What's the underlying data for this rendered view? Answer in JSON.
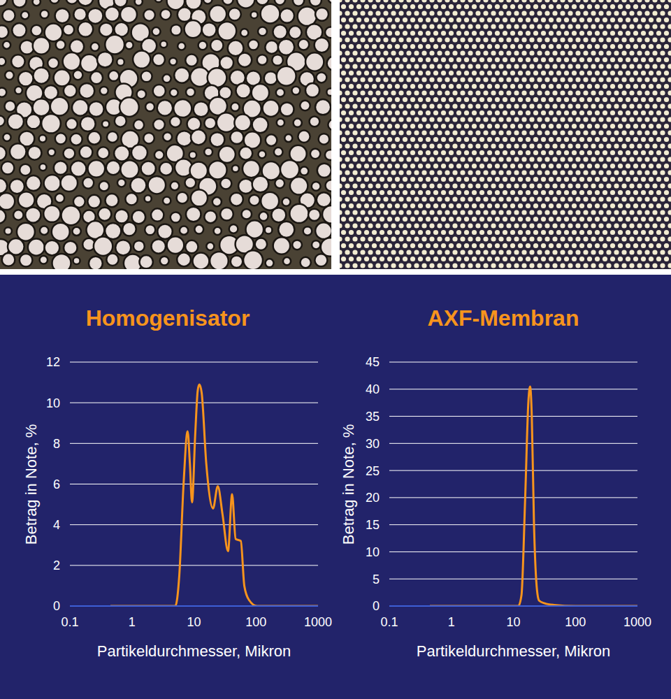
{
  "chart_data": [
    {
      "type": "line",
      "title": "Homogenisator",
      "xlabel": "Partikeldurchmesser, Mikron",
      "ylabel": "Betrag in Note, %",
      "x": [
        0.45,
        5.0,
        5.8,
        6.8,
        7.9,
        8.6,
        9.3,
        10.5,
        11.5,
        12.2,
        13.3,
        15.8,
        20.3,
        24.2,
        28.9,
        35.4,
        41.2,
        47,
        56.9,
        64.8,
        77,
        104,
        1000
      ],
      "values": [
        0,
        0,
        1.5,
        6,
        8.6,
        7,
        5.1,
        8.5,
        10.6,
        10.9,
        10.5,
        7,
        4.8,
        5.9,
        4.5,
        2.7,
        5.5,
        3.3,
        3.2,
        1.0,
        0.3,
        0,
        0
      ],
      "color": "#f7941d",
      "log": "x",
      "xlim": [
        0.1,
        1000
      ],
      "xticks": [
        0.1,
        1,
        10,
        100,
        1000
      ],
      "ylim": [
        0,
        12
      ],
      "yticks": [
        0,
        2,
        4,
        6,
        8,
        10,
        12
      ],
      "grid": true
    },
    {
      "type": "line",
      "title": "AXF-Membran",
      "xlabel": "Partikeldurchmesser, Mikron",
      "ylabel": "Betrag in Note, %",
      "x": [
        0.45,
        12,
        13.5,
        15.5,
        17.5,
        18.6,
        19.8,
        21.5,
        24,
        26,
        32,
        45,
        100,
        1000
      ],
      "values": [
        0,
        0,
        2,
        20,
        38,
        40.5,
        35,
        15,
        3,
        1,
        0.5,
        0.2,
        0,
        0
      ],
      "color": "#f7941d",
      "log": "x",
      "xlim": [
        0.1,
        1000
      ],
      "xticks": [
        0.1,
        1,
        10,
        100,
        1000
      ],
      "ylim": [
        0,
        45
      ],
      "yticks": [
        0,
        5,
        10,
        15,
        20,
        25,
        30,
        35,
        40,
        45
      ],
      "grid": true
    }
  ]
}
